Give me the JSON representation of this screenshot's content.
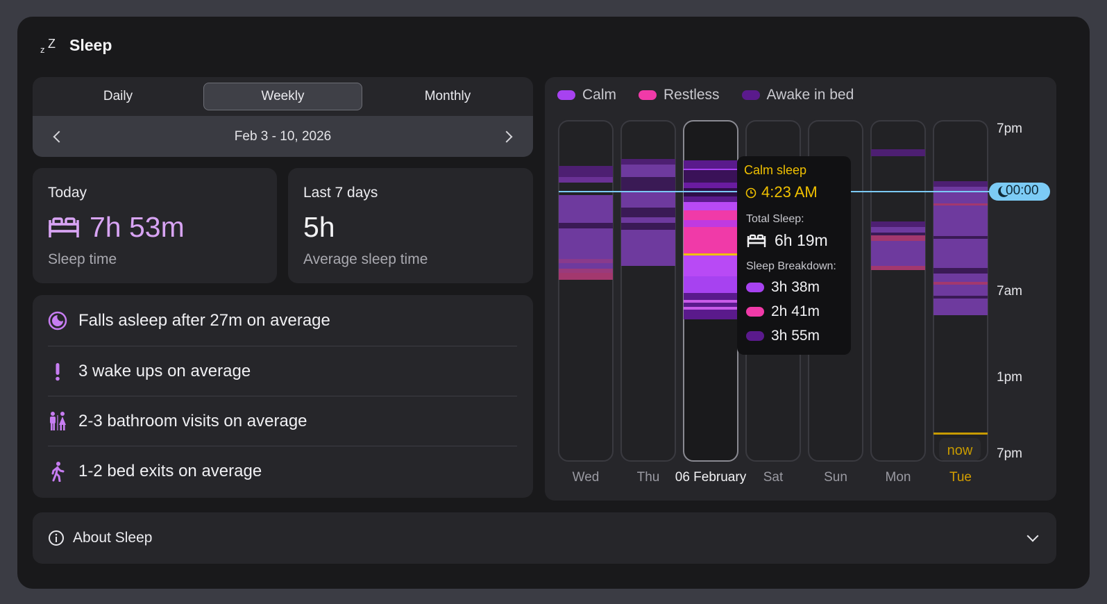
{
  "header": {
    "title": "Sleep"
  },
  "tabs": {
    "daily": "Daily",
    "weekly": "Weekly",
    "monthly": "Monthly"
  },
  "range": {
    "label": "Feb 3 - 10, 2026"
  },
  "today": {
    "title": "Today",
    "value": "7h 53m",
    "sub": "Sleep time"
  },
  "last7": {
    "title": "Last 7 days",
    "value": "5h",
    "sub": "Average sleep time"
  },
  "facts": [
    {
      "icon": "moon-circle-icon",
      "text": "Falls asleep after 27m on average"
    },
    {
      "icon": "exclamation-icon",
      "text": "3 wake ups on average"
    },
    {
      "icon": "restroom-icon",
      "text": "2-3 bathroom visits on average"
    },
    {
      "icon": "walking-icon",
      "text": "1-2 bed exits on average"
    }
  ],
  "about": {
    "label": "About Sleep"
  },
  "colors": {
    "calm": "#a742f0",
    "restless": "#f03aa8",
    "awake": "#5a1a8c",
    "accent": "#f0c000",
    "marker": "#7ccbf5"
  },
  "chart_data": {
    "type": "timeline",
    "legend": [
      "Calm",
      "Restless",
      "Awake in bed"
    ],
    "days": [
      "Wed",
      "Thu",
      "06 February",
      "Sat",
      "Sun",
      "Mon",
      "Tue"
    ],
    "y_ticks": [
      "7pm",
      "7am",
      "1pm",
      "7pm"
    ],
    "selected_day": "06 February",
    "current_day": "Tue",
    "now_label": "now",
    "marker_time": "00:00",
    "tooltip": {
      "title": "Calm sleep",
      "time": "4:23 AM",
      "total_label": "Total Sleep:",
      "total": "6h 19m",
      "breakdown_label": "Sleep Breakdown:",
      "calm": "3h 38m",
      "restless": "2h 41m",
      "awake": "3h 55m"
    }
  }
}
